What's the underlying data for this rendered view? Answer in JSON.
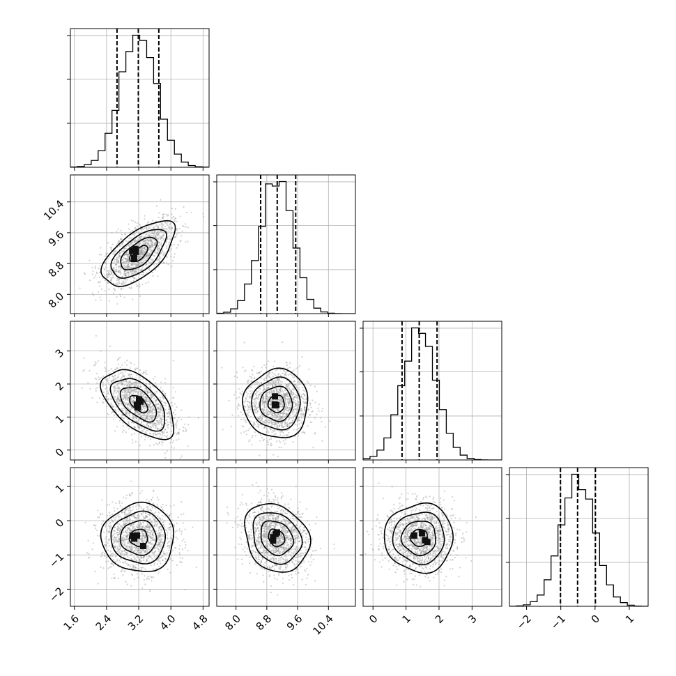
{
  "chart_data": {
    "type": "corner",
    "parameters": [
      {
        "mean": 3.2,
        "std": 0.45,
        "range": [
          1.5,
          4.95
        ],
        "ticks": [
          1.6,
          2.4,
          3.2,
          4.0,
          4.8
        ],
        "tick_labels": [
          "1.6",
          "2.4",
          "3.2",
          "4.0",
          "4.8"
        ],
        "quantiles": [
          2.66,
          3.19,
          3.7
        ]
      },
      {
        "mean": 9.05,
        "std": 0.42,
        "range": [
          7.5,
          11.1
        ],
        "ticks": [
          8.0,
          8.8,
          9.6,
          10.4
        ],
        "tick_labels": [
          "8.0",
          "8.8",
          "9.6",
          "10.4"
        ],
        "quantiles": [
          8.64,
          9.07,
          9.55
        ]
      },
      {
        "mean": 1.4,
        "std": 0.52,
        "range": [
          -0.3,
          3.9
        ],
        "ticks": [
          0,
          1,
          2,
          3
        ],
        "tick_labels": [
          "0",
          "1",
          "2",
          "3"
        ],
        "quantiles": [
          0.88,
          1.4,
          1.94
        ]
      },
      {
        "mean": -0.5,
        "std": 0.5,
        "range": [
          -2.5,
          1.55
        ],
        "ticks": [
          -2,
          -1,
          0,
          1
        ],
        "tick_labels": [
          "−2",
          "−1",
          "0",
          "1"
        ],
        "quantiles": [
          -1.01,
          -0.51,
          0.01
        ]
      }
    ],
    "correlations": [
      [
        1.0,
        0.62,
        -0.55,
        0.0
      ],
      [
        0.62,
        1.0,
        0.0,
        -0.2
      ],
      [
        -0.55,
        0.0,
        1.0,
        0.0
      ],
      [
        0.0,
        -0.2,
        0.0,
        1.0
      ]
    ],
    "histogram_bins": 20,
    "contour_levels_sigma": [
      0.5,
      1.0,
      1.5,
      2.0
    ],
    "grid": true,
    "colors": {
      "contour": "#000000",
      "density": "#000000",
      "points": "#999999",
      "grid": "#b0b0b0"
    }
  }
}
